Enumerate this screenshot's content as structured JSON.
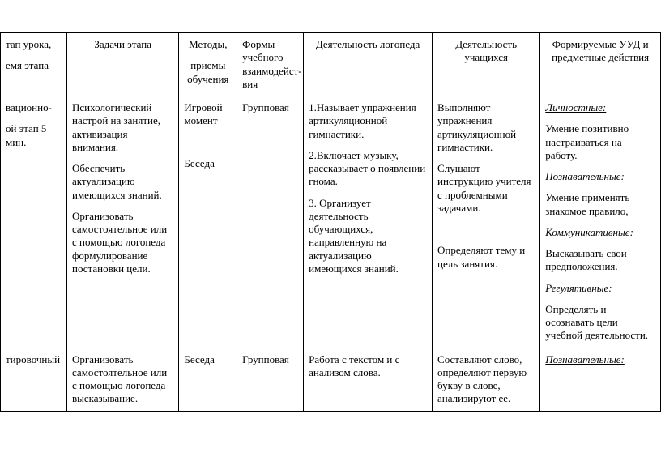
{
  "headers": {
    "c0a": "тап урока,",
    "c0b": "емя этапа",
    "c1": "Задачи этапа",
    "c2a": "Методы,",
    "c2b": "приемы обучения",
    "c3": "Формы учебного взаимодейст-вия",
    "c4": "Деятельность логопеда",
    "c5": "Деятельность учащихся",
    "c6": "Формируемые УУД и предметные действия"
  },
  "row1": {
    "c0a": "вационно-",
    "c0b": "ой этап 5 мин.",
    "c1a": "Психологический настрой на занятие, активизация внимания.",
    "c1b": "Обеспечить актуализацию имеющихся знаний.",
    "c1c": "Организовать самостоятельное или с помощью логопеда формулирование постановки цели.",
    "c2a": "Игровой момент",
    "c2b": "Беседа",
    "c3": "Групповая",
    "c4a": "1.Называет упражнения артикуляционной гимнастики.",
    "c4b": "2.Включает музыку, рассказывает о появлении гнома.",
    "c4c": "3. Организует деятельность обучающихся, направленную на актуализацию имеющихся знаний.",
    "c5a": "Выполняют упражнения артикуляционной гимнастики.",
    "c5b": "Слушают инструкцию учителя с проблемными задачами.",
    "c5c": "Определяют тему и цель занятия.",
    "c6_h1": "Личностные:",
    "c6_p1": "Умение позитивно настраиваться на работу.",
    "c6_h2": "Познавательные:",
    "c6_p2a": "Умение применять знакомое правило,",
    "c6_h3": "Коммуникативные:",
    "c6_p3": "Высказывать свои предположения.",
    "c6_h4": "Регулятивные:",
    "c6_p4": "Определять и осознавать цели учебной деятельности."
  },
  "row2": {
    "c0": "тировочный",
    "c1": "Организовать самостоятельное или с помощью логопеда высказывание.",
    "c2": "Беседа",
    "c3": "Групповая",
    "c4": "Работа с текстом и с анализом слова.",
    "c5": "Составляют слово, определяют первую букву в слове, анализируют ее.",
    "c6_h1": "Познавательные:"
  },
  "style": {
    "background": "#ffffff",
    "border_color": "#000000",
    "font_family": "Times New Roman",
    "base_fontsize": 13
  }
}
